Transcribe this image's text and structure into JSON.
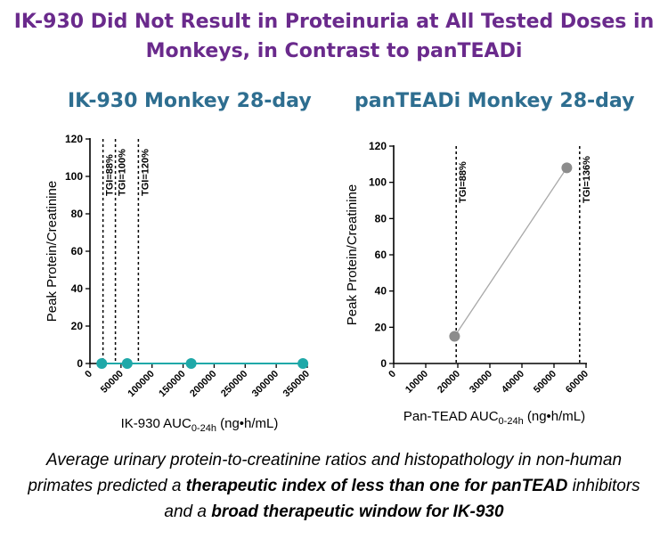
{
  "slide": {
    "title_line1": "IK-930 Did Not Result in Proteinuria at All Tested Doses in",
    "title_line2": "Monkeys, in Contrast to panTEADi"
  },
  "caption": {
    "p1": "Average urinary protein-to-creatinine  ratios and histopathology in non-human primates predicted a ",
    "b1": "therapeutic index of less than one for panTEAD",
    "p2": " inhibitors and a ",
    "b2": "broad therapeutic window for IK-930"
  },
  "colors": {
    "title": "#6a2a8c",
    "panel_title": "#2e6e90",
    "ik930_series": "#1fa8a8",
    "pantead_series": "#8c8c8c",
    "pantead_line": "#a8a8a8"
  },
  "chart_data": [
    {
      "type": "scatter",
      "title": "IK-930 Monkey 28-day",
      "ylabel": "Peak Protein/Creatinine",
      "xlabel_main": "IK-930 AUC",
      "xlabel_sub": "0-24h",
      "xlabel_unit": " (ng•h/mL)",
      "xlim": [
        0,
        350000
      ],
      "ylim": [
        0,
        120
      ],
      "x_ticks": [
        0,
        50000,
        100000,
        150000,
        200000,
        250000,
        300000,
        350000
      ],
      "y_ticks": [
        0,
        20,
        40,
        60,
        80,
        100,
        120
      ],
      "series": [
        {
          "name": "IK-930",
          "x": [
            19000,
            60000,
            163000,
            343000
          ],
          "y": [
            0,
            0,
            0,
            0
          ]
        }
      ],
      "reference_lines": [
        {
          "x": 21000,
          "label": "TGI=88%"
        },
        {
          "x": 41000,
          "label": "TGI=100%"
        },
        {
          "x": 78000,
          "label": "TGI=120%"
        }
      ]
    },
    {
      "type": "line",
      "title": "panTEADi Monkey 28-day",
      "ylabel": "Peak Protein/Creatinine",
      "xlabel_main": "Pan-TEAD AUC",
      "xlabel_sub": "0-24h",
      "xlabel_unit": " (ng•h/mL)",
      "xlim": [
        0,
        60000
      ],
      "ylim": [
        0,
        120
      ],
      "x_ticks": [
        0,
        10000,
        20000,
        30000,
        40000,
        50000,
        60000
      ],
      "y_ticks": [
        0,
        20,
        40,
        60,
        80,
        100,
        120
      ],
      "series": [
        {
          "name": "panTEADi",
          "x": [
            19000,
            54000
          ],
          "y": [
            15,
            108
          ]
        }
      ],
      "reference_lines": [
        {
          "x": 19500,
          "label": "TGI=88%"
        },
        {
          "x": 58000,
          "label": "TGI=136%"
        }
      ]
    }
  ]
}
